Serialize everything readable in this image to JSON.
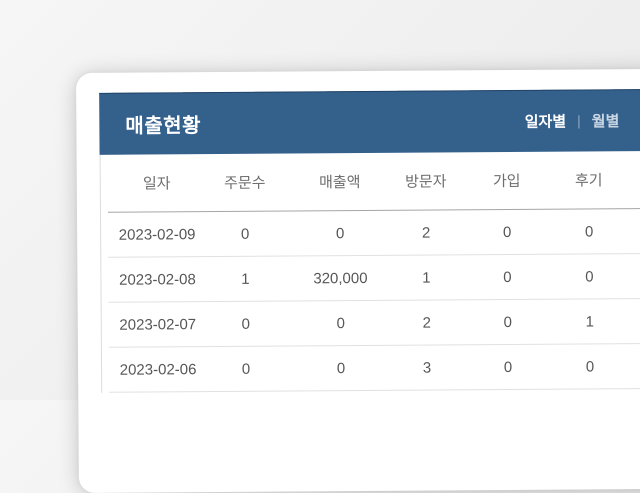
{
  "widget": {
    "title": "매출현황",
    "tabs": [
      {
        "label": "일자별",
        "active": true
      },
      {
        "label": "월별",
        "active": false
      }
    ],
    "tab_separator": "|"
  },
  "table": {
    "columns": [
      "일자",
      "주문수",
      "매출액",
      "방문자",
      "가입",
      "후기"
    ],
    "rows": [
      [
        "2023-02-09",
        "0",
        "0",
        "2",
        "0",
        "0"
      ],
      [
        "2023-02-08",
        "1",
        "320,000",
        "1",
        "0",
        "0"
      ],
      [
        "2023-02-07",
        "0",
        "0",
        "2",
        "0",
        "1"
      ],
      [
        "2023-02-06",
        "0",
        "0",
        "3",
        "0",
        "0"
      ]
    ]
  },
  "colors": {
    "header_bg": "#34608c",
    "tab_active": "#ffffff",
    "tab_inactive": "#c9d6e3",
    "header_rule": "#a6a6a6",
    "row_rule": "#e1e1e1"
  }
}
